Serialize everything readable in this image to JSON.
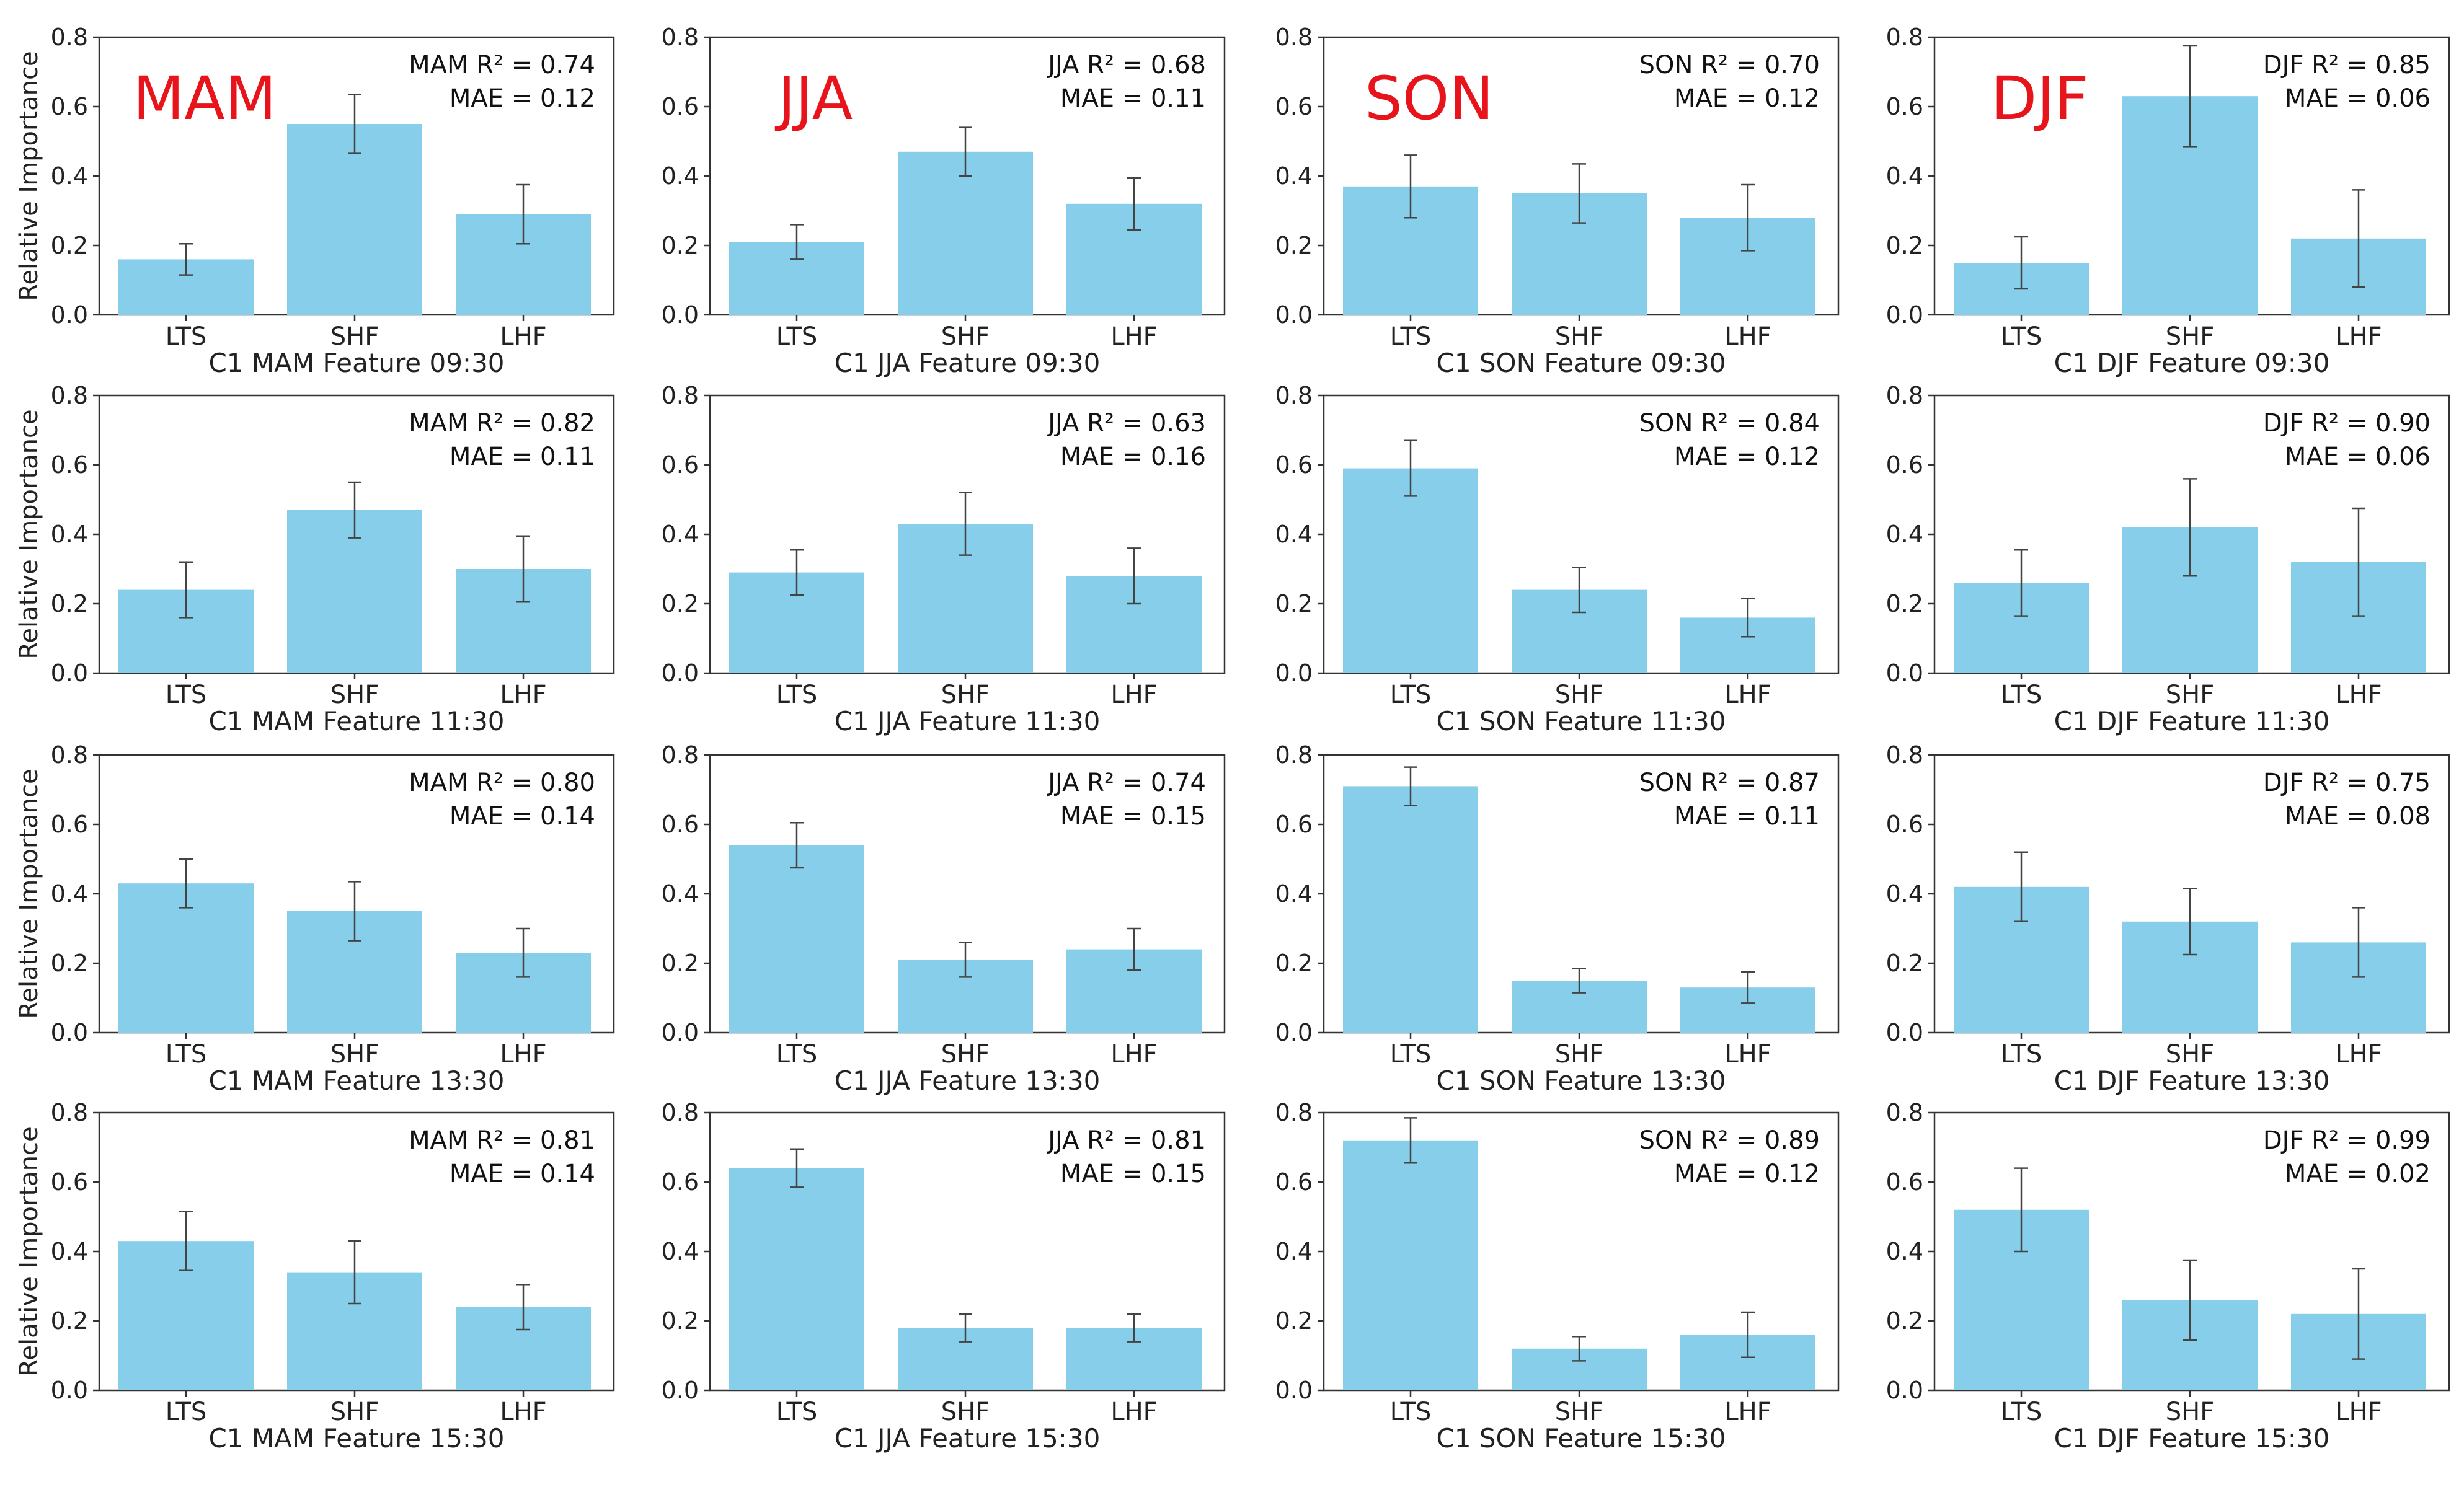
{
  "ylabel": "Relative Importance",
  "chart_data": [
    {
      "type": "bar",
      "season": "MAM",
      "season_label": "MAM",
      "categories": [
        "LTS",
        "SHF",
        "LHF"
      ],
      "values": [
        0.16,
        0.55,
        0.29
      ],
      "errors": [
        0.045,
        0.085,
        0.085
      ],
      "xlabel": "C1 MAM Feature 09:30",
      "ylabel": "Relative Importance",
      "r2_text": "MAM R² = 0.74",
      "mae_text": "MAE = 0.12",
      "ylim": [
        0,
        0.8
      ],
      "yticks": [
        "0.0",
        "0.2",
        "0.4",
        "0.6",
        "0.8"
      ],
      "bar_color": "#87ceeb"
    },
    {
      "type": "bar",
      "season": "JJA",
      "season_label": "JJA",
      "categories": [
        "LTS",
        "SHF",
        "LHF"
      ],
      "values": [
        0.21,
        0.47,
        0.32
      ],
      "errors": [
        0.05,
        0.07,
        0.075
      ],
      "xlabel": "C1 JJA Feature 09:30",
      "ylabel": "",
      "r2_text": "JJA R² = 0.68",
      "mae_text": "MAE = 0.11",
      "ylim": [
        0,
        0.8
      ],
      "yticks": [
        "0.0",
        "0.2",
        "0.4",
        "0.6",
        "0.8"
      ],
      "bar_color": "#87ceeb"
    },
    {
      "type": "bar",
      "season": "SON",
      "season_label": "SON",
      "categories": [
        "LTS",
        "SHF",
        "LHF"
      ],
      "values": [
        0.37,
        0.35,
        0.28
      ],
      "errors": [
        0.09,
        0.085,
        0.095
      ],
      "xlabel": "C1 SON Feature 09:30",
      "ylabel": "",
      "r2_text": "SON R² = 0.70",
      "mae_text": "MAE = 0.12",
      "ylim": [
        0,
        0.8
      ],
      "yticks": [
        "0.0",
        "0.2",
        "0.4",
        "0.6",
        "0.8"
      ],
      "bar_color": "#87ceeb"
    },
    {
      "type": "bar",
      "season": "DJF",
      "season_label": "DJF",
      "categories": [
        "LTS",
        "SHF",
        "LHF"
      ],
      "values": [
        0.15,
        0.63,
        0.22
      ],
      "errors": [
        0.075,
        0.145,
        0.14
      ],
      "xlabel": "C1 DJF Feature 09:30",
      "ylabel": "",
      "r2_text": "DJF R² = 0.85",
      "mae_text": "MAE = 0.06",
      "ylim": [
        0,
        0.8
      ],
      "yticks": [
        "0.0",
        "0.2",
        "0.4",
        "0.6",
        "0.8"
      ],
      "bar_color": "#87ceeb"
    },
    {
      "type": "bar",
      "season": "MAM",
      "categories": [
        "LTS",
        "SHF",
        "LHF"
      ],
      "values": [
        0.24,
        0.47,
        0.3
      ],
      "errors": [
        0.08,
        0.08,
        0.095
      ],
      "xlabel": "C1 MAM Feature 11:30",
      "ylabel": "Relative Importance",
      "r2_text": "MAM R² = 0.82",
      "mae_text": "MAE = 0.11",
      "ylim": [
        0,
        0.8
      ],
      "yticks": [
        "0.0",
        "0.2",
        "0.4",
        "0.6",
        "0.8"
      ],
      "bar_color": "#87ceeb"
    },
    {
      "type": "bar",
      "season": "JJA",
      "categories": [
        "LTS",
        "SHF",
        "LHF"
      ],
      "values": [
        0.29,
        0.43,
        0.28
      ],
      "errors": [
        0.065,
        0.09,
        0.08
      ],
      "xlabel": "C1 JJA Feature 11:30",
      "ylabel": "",
      "r2_text": "JJA R² = 0.63",
      "mae_text": "MAE = 0.16",
      "ylim": [
        0,
        0.8
      ],
      "yticks": [
        "0.0",
        "0.2",
        "0.4",
        "0.6",
        "0.8"
      ],
      "bar_color": "#87ceeb"
    },
    {
      "type": "bar",
      "season": "SON",
      "categories": [
        "LTS",
        "SHF",
        "LHF"
      ],
      "values": [
        0.59,
        0.24,
        0.16
      ],
      "errors": [
        0.08,
        0.065,
        0.055
      ],
      "xlabel": "C1 SON Feature 11:30",
      "ylabel": "",
      "r2_text": "SON R² = 0.84",
      "mae_text": "MAE = 0.12",
      "ylim": [
        0,
        0.8
      ],
      "yticks": [
        "0.0",
        "0.2",
        "0.4",
        "0.6",
        "0.8"
      ],
      "bar_color": "#87ceeb"
    },
    {
      "type": "bar",
      "season": "DJF",
      "categories": [
        "LTS",
        "SHF",
        "LHF"
      ],
      "values": [
        0.26,
        0.42,
        0.32
      ],
      "errors": [
        0.095,
        0.14,
        0.155
      ],
      "xlabel": "C1 DJF Feature 11:30",
      "ylabel": "",
      "r2_text": "DJF R² = 0.90",
      "mae_text": "MAE = 0.06",
      "ylim": [
        0,
        0.8
      ],
      "yticks": [
        "0.0",
        "0.2",
        "0.4",
        "0.6",
        "0.8"
      ],
      "bar_color": "#87ceeb"
    },
    {
      "type": "bar",
      "season": "MAM",
      "categories": [
        "LTS",
        "SHF",
        "LHF"
      ],
      "values": [
        0.43,
        0.35,
        0.23
      ],
      "errors": [
        0.07,
        0.085,
        0.07
      ],
      "xlabel": "C1 MAM Feature 13:30",
      "ylabel": "Relative Importance",
      "r2_text": "MAM R² = 0.80",
      "mae_text": "MAE = 0.14",
      "ylim": [
        0,
        0.8
      ],
      "yticks": [
        "0.0",
        "0.2",
        "0.4",
        "0.6",
        "0.8"
      ],
      "bar_color": "#87ceeb"
    },
    {
      "type": "bar",
      "season": "JJA",
      "categories": [
        "LTS",
        "SHF",
        "LHF"
      ],
      "values": [
        0.54,
        0.21,
        0.24
      ],
      "errors": [
        0.065,
        0.05,
        0.06
      ],
      "xlabel": "C1 JJA Feature 13:30",
      "ylabel": "",
      "r2_text": "JJA R² = 0.74",
      "mae_text": "MAE = 0.15",
      "ylim": [
        0,
        0.8
      ],
      "yticks": [
        "0.0",
        "0.2",
        "0.4",
        "0.6",
        "0.8"
      ],
      "bar_color": "#87ceeb"
    },
    {
      "type": "bar",
      "season": "SON",
      "categories": [
        "LTS",
        "SHF",
        "LHF"
      ],
      "values": [
        0.71,
        0.15,
        0.13
      ],
      "errors": [
        0.055,
        0.035,
        0.045
      ],
      "xlabel": "C1 SON Feature 13:30",
      "ylabel": "",
      "r2_text": "SON R² = 0.87",
      "mae_text": "MAE = 0.11",
      "ylim": [
        0,
        0.8
      ],
      "yticks": [
        "0.0",
        "0.2",
        "0.4",
        "0.6",
        "0.8"
      ],
      "bar_color": "#87ceeb"
    },
    {
      "type": "bar",
      "season": "DJF",
      "categories": [
        "LTS",
        "SHF",
        "LHF"
      ],
      "values": [
        0.42,
        0.32,
        0.26
      ],
      "errors": [
        0.1,
        0.095,
        0.1
      ],
      "xlabel": "C1 DJF Feature 13:30",
      "ylabel": "",
      "r2_text": "DJF R² = 0.75",
      "mae_text": "MAE = 0.08",
      "ylim": [
        0,
        0.8
      ],
      "yticks": [
        "0.0",
        "0.2",
        "0.4",
        "0.6",
        "0.8"
      ],
      "bar_color": "#87ceeb"
    },
    {
      "type": "bar",
      "season": "MAM",
      "categories": [
        "LTS",
        "SHF",
        "LHF"
      ],
      "values": [
        0.43,
        0.34,
        0.24
      ],
      "errors": [
        0.085,
        0.09,
        0.065
      ],
      "xlabel": "C1 MAM Feature 15:30",
      "ylabel": "Relative Importance",
      "r2_text": "MAM R² = 0.81",
      "mae_text": "MAE = 0.14",
      "ylim": [
        0,
        0.8
      ],
      "yticks": [
        "0.0",
        "0.2",
        "0.4",
        "0.6",
        "0.8"
      ],
      "bar_color": "#87ceeb"
    },
    {
      "type": "bar",
      "season": "JJA",
      "categories": [
        "LTS",
        "SHF",
        "LHF"
      ],
      "values": [
        0.64,
        0.18,
        0.18
      ],
      "errors": [
        0.055,
        0.04,
        0.04
      ],
      "xlabel": "C1 JJA Feature 15:30",
      "ylabel": "",
      "r2_text": "JJA R² = 0.81",
      "mae_text": "MAE = 0.15",
      "ylim": [
        0,
        0.8
      ],
      "yticks": [
        "0.0",
        "0.2",
        "0.4",
        "0.6",
        "0.8"
      ],
      "bar_color": "#87ceeb"
    },
    {
      "type": "bar",
      "season": "SON",
      "categories": [
        "LTS",
        "SHF",
        "LHF"
      ],
      "values": [
        0.72,
        0.12,
        0.16
      ],
      "errors": [
        0.065,
        0.035,
        0.065
      ],
      "xlabel": "C1 SON Feature 15:30",
      "ylabel": "",
      "r2_text": "SON R² = 0.89",
      "mae_text": "MAE = 0.12",
      "ylim": [
        0,
        0.8
      ],
      "yticks": [
        "0.0",
        "0.2",
        "0.4",
        "0.6",
        "0.8"
      ],
      "bar_color": "#87ceeb"
    },
    {
      "type": "bar",
      "season": "DJF",
      "categories": [
        "LTS",
        "SHF",
        "LHF"
      ],
      "values": [
        0.52,
        0.26,
        0.22
      ],
      "errors": [
        0.12,
        0.115,
        0.13
      ],
      "xlabel": "C1 DJF Feature 15:30",
      "ylabel": "",
      "r2_text": "DJF R² = 0.99",
      "mae_text": "MAE = 0.02",
      "ylim": [
        0,
        0.8
      ],
      "yticks": [
        "0.0",
        "0.2",
        "0.4",
        "0.6",
        "0.8"
      ],
      "bar_color": "#87ceeb"
    }
  ]
}
